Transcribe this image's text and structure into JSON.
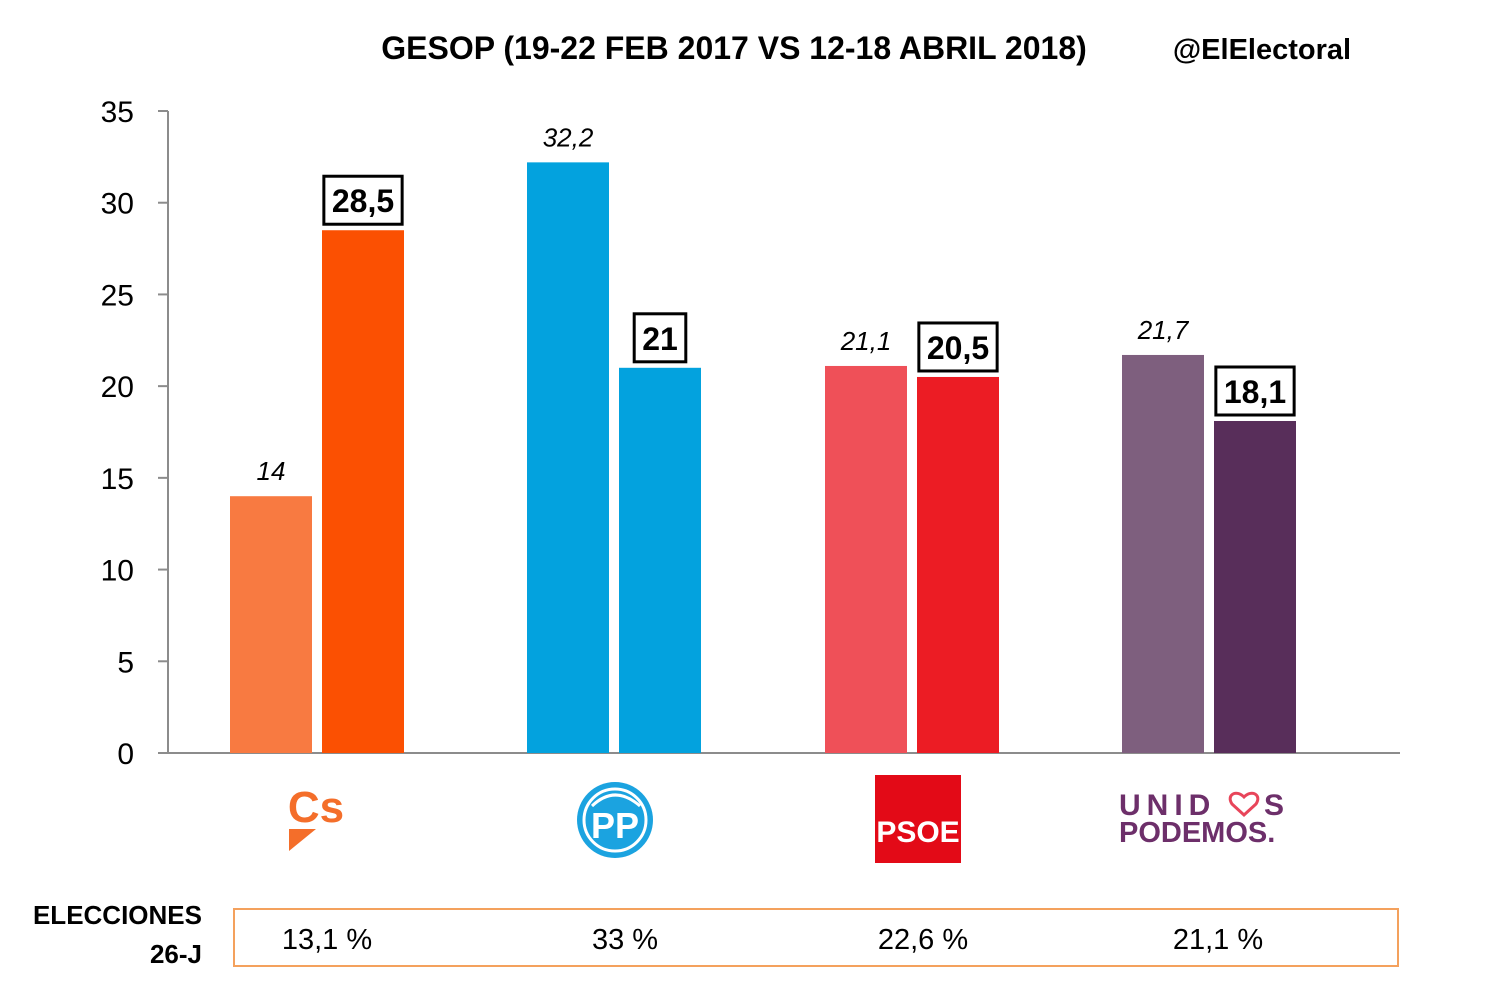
{
  "chart_data": {
    "type": "bar",
    "title": "GESOP (19-22 FEB 2017 VS 12-18 ABRIL 2018)",
    "handle": "@ElElectoral",
    "categories": [
      "Cs",
      "PP",
      "PSOE",
      "UNIDOS PODEMOS"
    ],
    "series": [
      {
        "values": [
          14,
          32.2,
          21.1,
          21.7
        ],
        "labels": [
          "14",
          "32,2",
          "21,1",
          "21,7"
        ]
      },
      {
        "values": [
          28.5,
          21,
          20.5,
          18.1
        ],
        "labels": [
          "28,5",
          "21",
          "20,5",
          "18,1"
        ]
      }
    ],
    "colors": {
      "old": [
        "#F87A41",
        "#03A2DE",
        "#EF5058",
        "#7E5F7E"
      ],
      "new": [
        "#FB5002",
        "#03A2DE",
        "#EC1C24",
        "#582E5A"
      ]
    },
    "ylim": [
      0,
      35
    ],
    "yticks": [
      "0",
      "5",
      "10",
      "15",
      "20",
      "25",
      "30",
      "35"
    ],
    "grid": false,
    "logos": [
      {
        "icon": "cs-logo",
        "text": "Cs",
        "color": "#F46E2A"
      },
      {
        "icon": "pp-logo",
        "text": "PP",
        "color": "#1BA3E0"
      },
      {
        "icon": "psoe-logo",
        "text": "PSOE",
        "color": "#E30A17"
      },
      {
        "icon": "unidos-podemos-logo",
        "line1a": "UNID",
        "line1b": "S",
        "line2": "PODEMOS.",
        "color": "#6D2F6A"
      }
    ],
    "elections": {
      "label_line1": "ELECCIONES",
      "label_line2": "26-J",
      "values": [
        "13,1 %",
        "33 %",
        "22,6 %",
        "21,1 %"
      ],
      "border_color": "#F4A15D"
    }
  }
}
